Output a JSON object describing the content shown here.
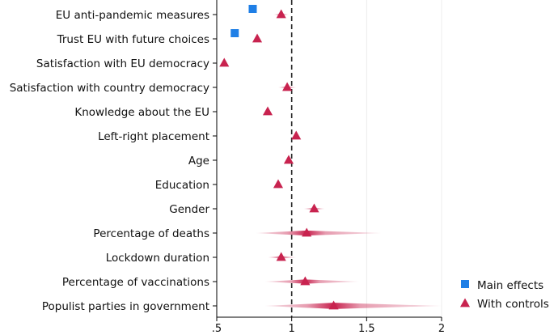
{
  "chart_data": {
    "type": "forest-plot",
    "title": "",
    "xlabel": "",
    "ylabel": "",
    "xlim": [
      0.5,
      2.0
    ],
    "xticks": [
      {
        "value": 0.5,
        "label": ".5"
      },
      {
        "value": 1.0,
        "label": "1"
      },
      {
        "value": 1.5,
        "label": "1.5"
      },
      {
        "value": 2.0,
        "label": "2"
      }
    ],
    "reference_line": 1.0,
    "grid": true,
    "legend_position": "bottom-right",
    "categories": [
      "EU anti-pandemic measures",
      "Trust EU with future choices",
      "Satisfaction with EU democracy",
      "Satisfaction with country democracy",
      "Knowledge about the EU",
      "Left-right placement",
      "Age",
      "Education",
      "Gender",
      "Percentage of deaths",
      "Lockdown duration",
      "Percentage of vaccinations",
      "Populist parties in government"
    ],
    "series": [
      {
        "name": "Main effects",
        "marker": "square",
        "color": "#1f7fe6",
        "points": [
          {
            "category": "EU anti-pandemic measures",
            "estimate": 0.74
          },
          {
            "category": "Trust EU with future choices",
            "estimate": 0.62
          }
        ]
      },
      {
        "name": "With controls",
        "marker": "triangle",
        "color": "#c8234f",
        "points": [
          {
            "category": "EU anti-pandemic measures",
            "estimate": 0.93,
            "ci": [
              0.88,
              0.98
            ]
          },
          {
            "category": "Trust EU with future choices",
            "estimate": 0.77,
            "ci": [
              0.75,
              0.79
            ]
          },
          {
            "category": "Satisfaction with EU democracy",
            "estimate": 0.55,
            "ci": [
              0.53,
              0.57
            ]
          },
          {
            "category": "Satisfaction with country democracy",
            "estimate": 0.97,
            "ci": [
              0.91,
              1.03
            ]
          },
          {
            "category": "Knowledge about the EU",
            "estimate": 0.84,
            "ci": [
              0.82,
              0.86
            ]
          },
          {
            "category": "Left-right placement",
            "estimate": 1.03,
            "ci": [
              1.01,
              1.05
            ]
          },
          {
            "category": "Age",
            "estimate": 0.98,
            "ci": [
              0.96,
              1.0
            ]
          },
          {
            "category": "Education",
            "estimate": 0.91,
            "ci": [
              0.89,
              0.93
            ]
          },
          {
            "category": "Gender",
            "estimate": 1.15,
            "ci": [
              1.08,
              1.22
            ]
          },
          {
            "category": "Percentage of deaths",
            "estimate": 1.1,
            "ci": [
              0.76,
              1.6
            ]
          },
          {
            "category": "Lockdown duration",
            "estimate": 0.93,
            "ci": [
              0.84,
              1.03
            ]
          },
          {
            "category": "Percentage of vaccinations",
            "estimate": 1.09,
            "ci": [
              0.82,
              1.45
            ]
          },
          {
            "category": "Populist parties in government",
            "estimate": 1.28,
            "ci": [
              0.82,
              2.0
            ]
          }
        ]
      }
    ],
    "legend": [
      {
        "label": "Main effects",
        "marker": "square"
      },
      {
        "label": "With controls",
        "marker": "triangle"
      }
    ]
  }
}
